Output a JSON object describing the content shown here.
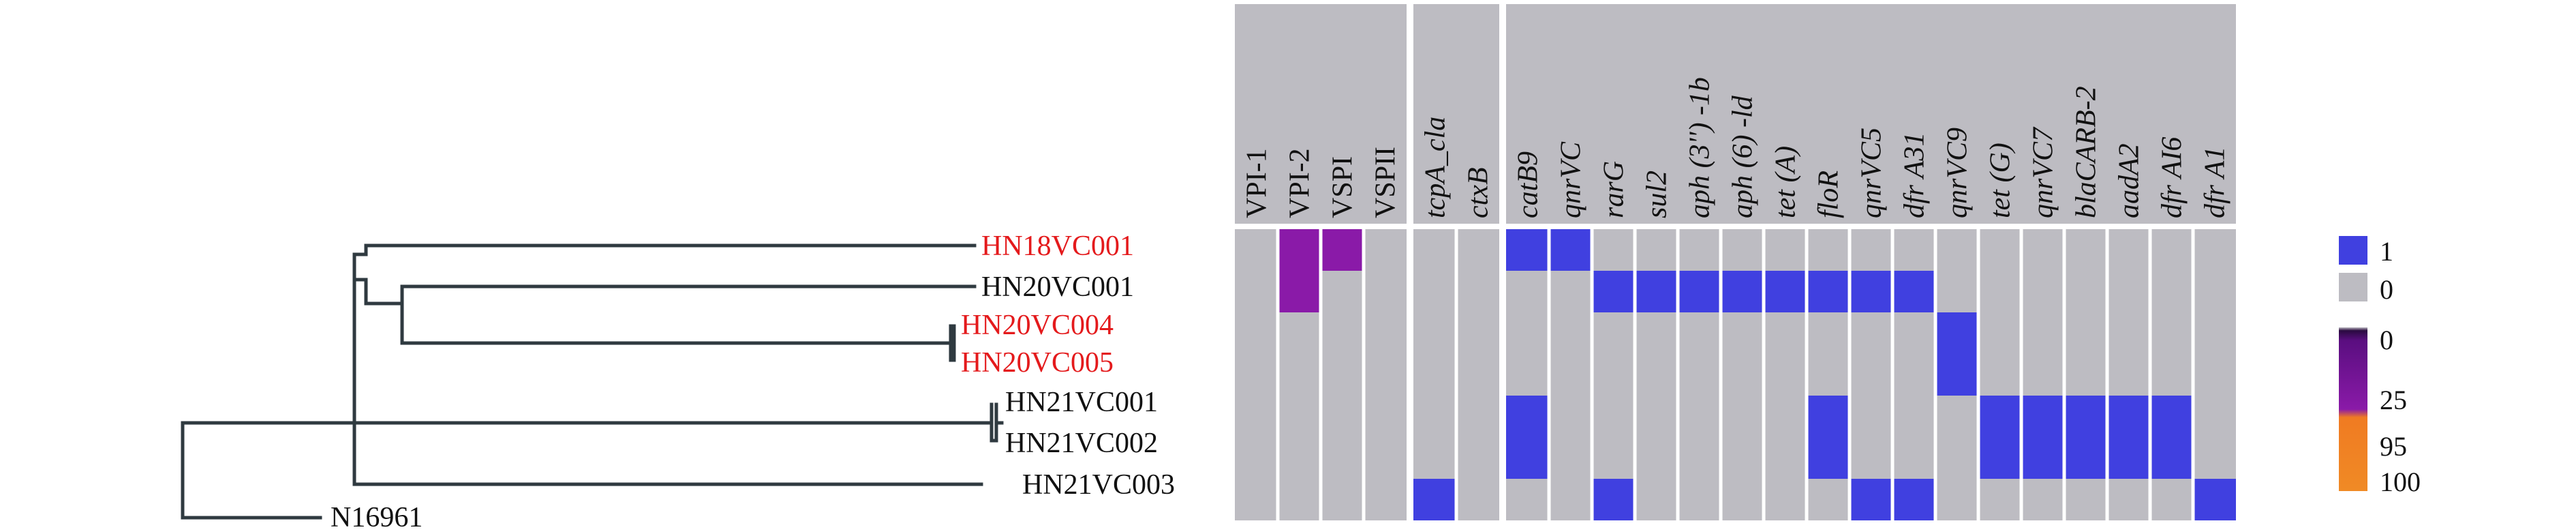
{
  "tree": {
    "leaves": [
      {
        "label": "HN18VC001",
        "color": "#e41a1c"
      },
      {
        "label": "HN20VC001",
        "color": "#111111"
      },
      {
        "label": "HN20VC004",
        "color": "#e41a1c"
      },
      {
        "label": "HN20VC005",
        "color": "#e41a1c"
      },
      {
        "label": "HN21VC001",
        "color": "#111111"
      },
      {
        "label": "HN21VC002",
        "color": "#111111"
      },
      {
        "label": "HN21VC003",
        "color": "#111111"
      },
      {
        "label": "N16961",
        "color": "#111111"
      }
    ]
  },
  "heatmap": {
    "rows": [
      "HN18VC001",
      "HN20VC001",
      "HN20VC004",
      "HN20VC005",
      "HN21VC001",
      "HN21VC002",
      "HN21VC003"
    ],
    "groups": [
      {
        "columns": [
          {
            "label": "VPI-1",
            "italic": false
          },
          {
            "label": "VPI-2",
            "italic": false
          },
          {
            "label": "VSPI",
            "italic": false
          },
          {
            "label": "VSPII",
            "italic": false
          }
        ]
      },
      {
        "columns": [
          {
            "label": "tcpA_cla",
            "italic": true
          },
          {
            "label": "ctxB",
            "italic": true
          }
        ]
      },
      {
        "columns": [
          {
            "label": "catB9",
            "italic": true
          },
          {
            "label": "qnrVC",
            "italic": true
          },
          {
            "label": "rarG",
            "italic": true
          },
          {
            "label": "sul2",
            "italic": true
          },
          {
            "label": "aph (3'') -1b",
            "italic": true
          },
          {
            "label": "aph (6) -ld",
            "italic": true
          },
          {
            "label": "tet (A)",
            "italic": true
          },
          {
            "label": "floR",
            "italic": true
          },
          {
            "label": "qnrVC5",
            "italic": true
          },
          {
            "label": "dfr A31",
            "italic": true
          },
          {
            "label": "qnrVC9",
            "italic": true
          },
          {
            "label": "tet (G)",
            "italic": true
          },
          {
            "label": "qnrVC7",
            "italic": true
          },
          {
            "label": "blaCARB-2",
            "italic": true
          },
          {
            "label": "aadA2",
            "italic": true
          },
          {
            "label": "dfr AI6",
            "italic": true
          },
          {
            "label": "dfr A1",
            "italic": true
          }
        ]
      }
    ],
    "cells": [
      [
        0,
        25,
        25,
        0,
        0,
        0,
        1,
        1,
        0,
        0,
        0,
        0,
        0,
        0,
        0,
        0,
        0,
        0,
        0,
        0,
        0,
        0,
        0
      ],
      [
        0,
        25,
        0,
        0,
        0,
        0,
        0,
        0,
        1,
        1,
        1,
        1,
        1,
        1,
        1,
        1,
        0,
        0,
        0,
        0,
        0,
        0,
        0
      ],
      [
        0,
        0,
        0,
        0,
        0,
        0,
        0,
        0,
        0,
        0,
        0,
        0,
        0,
        0,
        0,
        0,
        1,
        0,
        0,
        0,
        0,
        0,
        0
      ],
      [
        0,
        0,
        0,
        0,
        0,
        0,
        0,
        0,
        0,
        0,
        0,
        0,
        0,
        0,
        0,
        0,
        1,
        0,
        0,
        0,
        0,
        0,
        0
      ],
      [
        0,
        0,
        0,
        0,
        0,
        0,
        1,
        0,
        0,
        0,
        0,
        0,
        0,
        1,
        0,
        0,
        0,
        1,
        1,
        1,
        1,
        1,
        0
      ],
      [
        0,
        0,
        0,
        0,
        0,
        0,
        1,
        0,
        0,
        0,
        0,
        0,
        0,
        1,
        0,
        0,
        0,
        1,
        1,
        1,
        1,
        1,
        0
      ],
      [
        0,
        0,
        0,
        0,
        1,
        0,
        0,
        0,
        1,
        0,
        0,
        0,
        0,
        0,
        1,
        1,
        0,
        0,
        0,
        0,
        0,
        0,
        1
      ]
    ]
  },
  "legend": {
    "binary": [
      {
        "label": "1",
        "color": "#4040e0"
      },
      {
        "label": "0",
        "color": "#bdbcc2"
      }
    ],
    "gradient": [
      {
        "label": "0",
        "color": "#bdbcc2"
      },
      {
        "label": "25",
        "color": "#8a1aa8"
      },
      {
        "label": "95",
        "color": "#f07b22"
      },
      {
        "label": "100",
        "color": "#f08a25"
      }
    ]
  },
  "colors": {
    "presence": "#4040e0",
    "absence": "#bdbcc2",
    "identity_25": "#8a1aa8",
    "identity_95": "#f07b22",
    "red_label": "#e41a1c",
    "tree": "#2f3a40"
  }
}
